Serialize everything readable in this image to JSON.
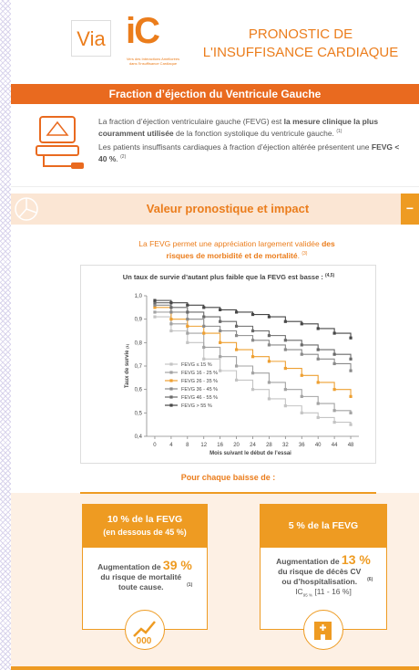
{
  "header": {
    "logo_via": "Via",
    "logo_ic": "iC",
    "logo_tagline_1": "Vers des Interactions Améliorées",
    "logo_tagline_2": "dans l'Insuffisance Cardiaque",
    "title_1": "PRONOSTIC DE",
    "title_2": "L'INSUFFISANCE CARDIAQUE"
  },
  "section1": {
    "title": "Fraction d’éjection du Ventricule Gauche",
    "p1": {
      "t1": "La fraction d’éjection ventriculaire gauche (FEVG) est ",
      "b1": "la mesure clinique la plus couramment utilisée",
      "t2": " de la fonction systolique du ventricule gauche.",
      "ref": "(1)"
    },
    "p2": {
      "t1": "Les patients insuffisants cardiaques à fraction d’éjection altérée présentent une ",
      "b1": "FEVG < 40 %",
      "t2": ".",
      "ref": "(2)"
    }
  },
  "section2": {
    "title": "Valeur pronostique et impact",
    "toggle": "−",
    "intro": {
      "t1": "La FEVG permet une appréciation largement validée ",
      "b1": "des risques de morbidité et de mortalité",
      "t2": ".",
      "ref": "(3)"
    },
    "per_drop": "Pour chaque baisse de :",
    "card1": {
      "head_1": "10 % de la FEVG",
      "head_2": "(en dessous de 45 %)",
      "t1": "Augmentation de ",
      "big": "39 %",
      "t2": "du risque de mortalité toute cause.",
      "ref": "(1)"
    },
    "card2": {
      "head_1": "5 % de la FEVG",
      "t1": "Augmentation de ",
      "big": "13 %",
      "t2": "du risque de décès CV ou d’hospitalisation.",
      "ref": "(6)",
      "ci_label": "IC",
      "ci_sub": "95 %",
      "ci_range": "[11 - 16 %]"
    }
  },
  "chart_data": {
    "type": "step",
    "title": "Un taux de survie d’autant plus faible que la FEVG est basse :",
    "title_ref": "(4,5)",
    "ylabel": "Taux de survie",
    "ylabel_ref": "(1)",
    "xlabel": "Mois suivant le début de l’essai",
    "x": [
      0,
      4,
      8,
      12,
      16,
      20,
      24,
      28,
      32,
      36,
      40,
      44,
      48
    ],
    "xlim": [
      -2,
      50
    ],
    "xticks": [
      0,
      4,
      8,
      12,
      16,
      20,
      24,
      28,
      32,
      36,
      40,
      44,
      48
    ],
    "ylim": [
      0.4,
      1.0
    ],
    "yticks": [
      {
        "value": 0.4,
        "label": "0,4"
      },
      {
        "value": 0.5,
        "label": "0,5"
      },
      {
        "value": 0.6,
        "label": "0,6"
      },
      {
        "value": 0.7,
        "label": "0,7"
      },
      {
        "value": 0.8,
        "label": "0,8"
      },
      {
        "value": 0.9,
        "label": "0,9"
      },
      {
        "value": 1.0,
        "label": "1,0"
      }
    ],
    "series": [
      {
        "name": "FEVG ≤ 15 %",
        "color": "#c4c4c4",
        "values": [
          0.91,
          0.85,
          0.8,
          0.73,
          0.68,
          0.64,
          0.6,
          0.56,
          0.53,
          0.5,
          0.48,
          0.46,
          0.45
        ]
      },
      {
        "name": "FEVG 16 - 25 %",
        "color": "#a3a3a3",
        "values": [
          0.93,
          0.88,
          0.84,
          0.78,
          0.74,
          0.7,
          0.67,
          0.63,
          0.6,
          0.57,
          0.54,
          0.51,
          0.5
        ]
      },
      {
        "name": "FEVG 26 - 35 %",
        "color": "#eea032",
        "values": [
          0.95,
          0.9,
          0.87,
          0.84,
          0.8,
          0.77,
          0.74,
          0.72,
          0.69,
          0.66,
          0.63,
          0.6,
          0.57
        ]
      },
      {
        "name": "FEVG 36 - 45 %",
        "color": "#8a8a8a",
        "values": [
          0.96,
          0.93,
          0.9,
          0.87,
          0.85,
          0.83,
          0.81,
          0.79,
          0.77,
          0.75,
          0.73,
          0.71,
          0.68
        ]
      },
      {
        "name": "FEVG 46 - 55 %",
        "color": "#6a6a6a",
        "values": [
          0.97,
          0.95,
          0.93,
          0.91,
          0.89,
          0.87,
          0.85,
          0.83,
          0.81,
          0.79,
          0.77,
          0.75,
          0.73
        ]
      },
      {
        "name": "FEVG > 55 %",
        "color": "#474747",
        "values": [
          0.98,
          0.97,
          0.96,
          0.95,
          0.94,
          0.93,
          0.92,
          0.91,
          0.89,
          0.88,
          0.86,
          0.84,
          0.82
        ]
      }
    ]
  }
}
